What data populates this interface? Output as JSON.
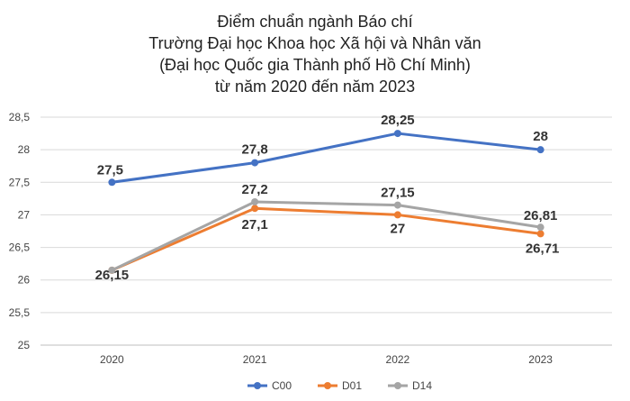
{
  "chart_data": {
    "type": "line",
    "title_lines": [
      "Điểm chuẩn ngành Báo chí",
      "Trường Đại học Khoa học Xã hội và Nhân văn",
      "(Đại học Quốc gia Thành phố Hồ Chí Minh)",
      "từ năm 2020 đến năm 2023"
    ],
    "categories": [
      "2020",
      "2021",
      "2022",
      "2023"
    ],
    "ylim": [
      25,
      28.5
    ],
    "yticks": [
      "25",
      "25,5",
      "26",
      "26,5",
      "27",
      "27,5",
      "28",
      "28,5"
    ],
    "grid": true,
    "legend_position": "bottom",
    "series": [
      {
        "name": "C00",
        "color": "#4472C4",
        "values": [
          27.5,
          27.8,
          28.25,
          28
        ],
        "labels": [
          "27,5",
          "27,8",
          "28,25",
          "28"
        ]
      },
      {
        "name": "D01",
        "color": "#ED7D31",
        "values": [
          26.15,
          27.1,
          27,
          26.71
        ],
        "labels": [
          "",
          "27,1",
          "27",
          "26,71"
        ]
      },
      {
        "name": "D14",
        "color": "#A5A5A5",
        "values": [
          26.15,
          27.2,
          27.15,
          26.81
        ],
        "labels": [
          "26,15",
          "27,2",
          "27,15",
          "26,81"
        ]
      }
    ]
  }
}
